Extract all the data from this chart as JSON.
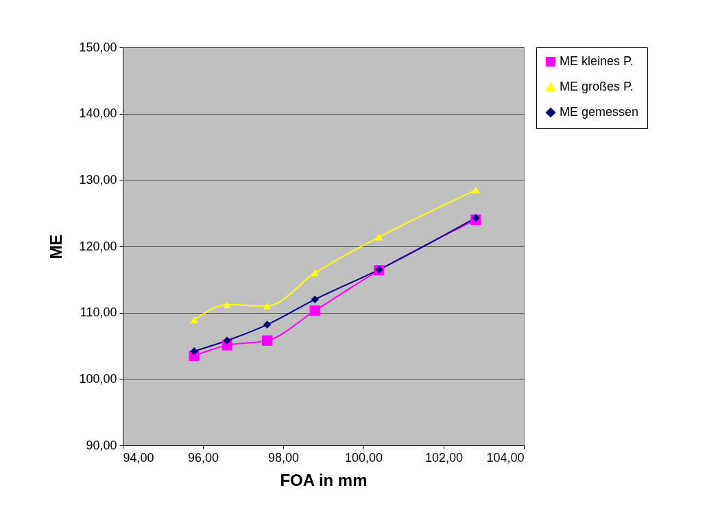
{
  "chart_data": {
    "type": "line",
    "xlabel": "FOA in mm",
    "ylabel": "ME",
    "x": [
      95.78,
      96.6,
      97.6,
      98.79,
      100.39,
      102.8
    ],
    "series": [
      {
        "name": "ME kleines P.",
        "color": "#ff00ff",
        "marker": "square",
        "values": [
          103.5,
          105.1,
          105.8,
          110.3,
          116.4,
          124.0
        ]
      },
      {
        "name": "ME großes P.",
        "color": "#ffff00",
        "marker": "triangle",
        "values": [
          108.9,
          111.2,
          111.0,
          116.0,
          121.4,
          128.5
        ]
      },
      {
        "name": "ME gemessen",
        "color": "#000080",
        "marker": "diamond",
        "values": [
          104.2,
          105.8,
          108.2,
          112.0,
          116.5,
          124.3
        ]
      }
    ],
    "xlim": [
      94,
      104
    ],
    "xticks": [
      {
        "value": 94,
        "label": "94,00"
      },
      {
        "value": 96,
        "label": "96,00"
      },
      {
        "value": 98,
        "label": "98,00"
      },
      {
        "value": 100,
        "label": "100,00"
      },
      {
        "value": 102,
        "label": "102,00"
      },
      {
        "value": 104,
        "label": "104,00"
      }
    ],
    "ylim": [
      90,
      150
    ],
    "yticks": [
      {
        "value": 90,
        "label": "90,00"
      },
      {
        "value": 100,
        "label": "100,00"
      },
      {
        "value": 110,
        "label": "110,00"
      },
      {
        "value": 120,
        "label": "120,00"
      },
      {
        "value": 130,
        "label": "130,00"
      },
      {
        "value": 140,
        "label": "140,00"
      },
      {
        "value": 150,
        "label": "150,00"
      }
    ],
    "grid": "y",
    "legend": "right",
    "line_style": "solid"
  }
}
